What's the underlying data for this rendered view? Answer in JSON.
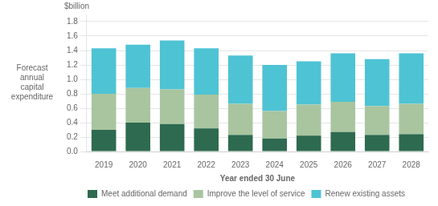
{
  "chart_data": {
    "type": "bar",
    "stacked": true,
    "categories": [
      "2019",
      "2020",
      "2021",
      "2022",
      "2023",
      "2024",
      "2025",
      "2026",
      "2027",
      "2028"
    ],
    "series": [
      {
        "name": "Meet additional demand",
        "color": "#2d6a4f",
        "values": [
          0.3,
          0.4,
          0.38,
          0.32,
          0.23,
          0.18,
          0.22,
          0.27,
          0.23,
          0.24
        ]
      },
      {
        "name": "Improve the level of service",
        "color": "#a8c5a0",
        "values": [
          0.5,
          0.48,
          0.48,
          0.47,
          0.43,
          0.38,
          0.43,
          0.42,
          0.4,
          0.42
        ]
      },
      {
        "name": "Renew existing assets",
        "color": "#4ec3d4",
        "values": [
          0.63,
          0.6,
          0.68,
          0.64,
          0.67,
          0.64,
          0.6,
          0.67,
          0.65,
          0.7
        ]
      }
    ],
    "xlabel": "Year ended 30 June",
    "ylabel": "Forecast\nannual\ncapital\nexpenditure",
    "annotations": [
      "$billion"
    ],
    "ylim": [
      0.0,
      1.9
    ],
    "yticks": [
      {
        "value": 0.0,
        "label": "0.0"
      },
      0.2,
      0.4,
      0.6,
      0.8,
      {
        "value": 1.0,
        "label": "1.0"
      },
      1.2,
      1.4,
      1.6,
      1.8
    ],
    "grid": true,
    "legend": "bottom"
  }
}
